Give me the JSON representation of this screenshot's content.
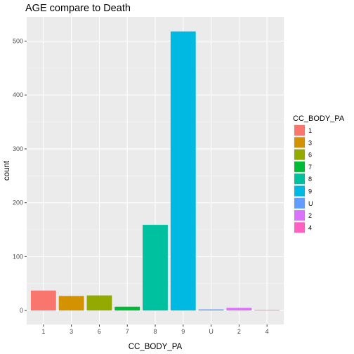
{
  "chart_data": {
    "type": "bar",
    "title": "AGE compare to Death",
    "xlabel": "CC_BODY_PA",
    "ylabel": "count",
    "categories": [
      "1",
      "3",
      "6",
      "7",
      "8",
      "9",
      "U",
      "2",
      "4"
    ],
    "values": [
      37,
      27,
      28,
      7,
      159,
      518,
      2,
      5,
      1
    ],
    "colors": [
      "#F8766D",
      "#D39200",
      "#93AA00",
      "#00BA38",
      "#00C19F",
      "#00B9E3",
      "#619CFF",
      "#DB72FB",
      "#FF61C3"
    ],
    "yticks": [
      0,
      100,
      200,
      300,
      400,
      500
    ],
    "ylim": [
      -26,
      545
    ],
    "grid": true,
    "panel_background": "#EBEBEB",
    "legend": {
      "title": "CC_BODY_PA",
      "position": "right",
      "entries": [
        "1",
        "3",
        "6",
        "7",
        "8",
        "9",
        "U",
        "2",
        "4"
      ]
    }
  }
}
